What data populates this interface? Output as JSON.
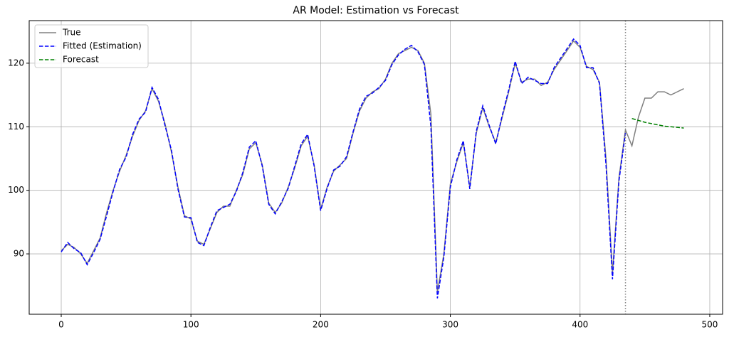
{
  "chart_data": {
    "type": "line",
    "title": "AR Model: Estimation vs Forecast",
    "x": [
      0,
      5,
      10,
      15,
      20,
      25,
      30,
      35,
      40,
      45,
      50,
      55,
      60,
      65,
      70,
      75,
      80,
      85,
      90,
      95,
      100,
      105,
      110,
      115,
      120,
      125,
      130,
      135,
      140,
      145,
      150,
      155,
      160,
      165,
      170,
      175,
      180,
      185,
      190,
      195,
      200,
      205,
      210,
      215,
      220,
      225,
      230,
      235,
      240,
      245,
      250,
      255,
      260,
      265,
      270,
      275,
      280,
      285,
      290,
      295,
      300,
      305,
      310,
      315,
      320,
      325,
      330,
      335,
      340,
      345,
      350,
      355,
      360,
      365,
      370,
      375,
      380,
      385,
      390,
      395,
      400,
      405,
      410,
      415,
      420,
      425,
      430,
      435,
      440,
      445,
      450,
      455,
      460,
      465,
      470,
      475,
      480
    ],
    "series": [
      {
        "name": "True",
        "color": "#808080",
        "linestyle": "solid",
        "values": [
          90.5,
          91.5,
          91.0,
          90.0,
          88.5,
          90.5,
          92.5,
          96.5,
          100.0,
          103.0,
          105.5,
          108.5,
          111.0,
          112.5,
          116.0,
          114.0,
          110.5,
          106.0,
          100.5,
          96.0,
          95.5,
          92.0,
          91.5,
          94.0,
          96.5,
          97.5,
          97.5,
          100.0,
          102.5,
          106.5,
          107.5,
          104.0,
          98.0,
          96.5,
          98.0,
          100.5,
          103.5,
          107.0,
          108.5,
          104.0,
          97.0,
          100.5,
          103.0,
          104.0,
          105.0,
          109.0,
          112.5,
          114.5,
          115.5,
          116.0,
          117.5,
          120.0,
          121.5,
          122.0,
          122.5,
          122.0,
          120.0,
          112.0,
          84.0,
          90.0,
          101.0,
          104.5,
          107.5,
          100.5,
          109.0,
          113.0,
          110.0,
          107.5,
          111.5,
          115.5,
          120.0,
          117.0,
          117.5,
          117.5,
          116.5,
          117.0,
          119.0,
          120.5,
          122.0,
          123.5,
          122.5,
          119.5,
          119.0,
          117.0,
          105.0,
          87.0,
          102.0,
          109.5,
          107.0,
          111.5,
          114.5,
          114.5,
          115.5,
          115.5,
          115.0,
          115.5,
          116.0
        ]
      },
      {
        "name": "Fitted (Estimation)",
        "color": "#0000ff",
        "linestyle": "dashed",
        "values": [
          90.3,
          91.8,
          90.8,
          90.2,
          88.3,
          90.2,
          92.3,
          96.0,
          99.8,
          103.3,
          105.2,
          108.8,
          111.2,
          112.3,
          116.2,
          114.3,
          110.2,
          106.3,
          100.2,
          95.8,
          95.7,
          91.8,
          91.3,
          94.2,
          96.8,
          97.3,
          97.8,
          99.8,
          102.8,
          106.8,
          107.8,
          103.8,
          97.8,
          96.3,
          98.2,
          100.3,
          103.8,
          107.3,
          108.8,
          103.8,
          96.8,
          100.3,
          103.2,
          103.8,
          105.3,
          109.2,
          112.8,
          114.8,
          115.3,
          116.2,
          117.3,
          119.8,
          121.3,
          122.2,
          122.8,
          121.8,
          119.8,
          110.0,
          83.0,
          89.5,
          100.5,
          104.8,
          107.8,
          100.2,
          109.3,
          113.3,
          110.2,
          107.3,
          111.8,
          115.8,
          120.3,
          116.8,
          117.8,
          117.3,
          116.8,
          116.8,
          119.3,
          120.8,
          122.3,
          123.8,
          122.8,
          119.3,
          119.3,
          116.8,
          104.0,
          86.0,
          101.5,
          109.0,
          null,
          null,
          null,
          null,
          null,
          null,
          null,
          null,
          null
        ]
      },
      {
        "name": "Forecast",
        "color": "#008000",
        "linestyle": "dashed",
        "values": [
          null,
          null,
          null,
          null,
          null,
          null,
          null,
          null,
          null,
          null,
          null,
          null,
          null,
          null,
          null,
          null,
          null,
          null,
          null,
          null,
          null,
          null,
          null,
          null,
          null,
          null,
          null,
          null,
          null,
          null,
          null,
          null,
          null,
          null,
          null,
          null,
          null,
          null,
          null,
          null,
          null,
          null,
          null,
          null,
          null,
          null,
          null,
          null,
          null,
          null,
          null,
          null,
          null,
          null,
          null,
          null,
          null,
          null,
          null,
          null,
          null,
          null,
          null,
          null,
          null,
          null,
          null,
          null,
          null,
          null,
          null,
          null,
          null,
          null,
          null,
          null,
          null,
          null,
          null,
          null,
          null,
          null,
          null,
          null,
          null,
          null,
          null,
          null,
          111.3,
          111.0,
          110.7,
          110.5,
          110.3,
          110.1,
          110.0,
          109.9,
          109.8
        ]
      }
    ],
    "xlim": [
      -24.7,
      509.9
    ],
    "ylim": [
      80.5,
      126.7
    ],
    "xticks": [
      0,
      100,
      200,
      300,
      400,
      500
    ],
    "yticks": [
      90,
      100,
      110,
      120
    ],
    "vline": 435,
    "vline_color": "#808080",
    "grid": true,
    "legend": "upper left"
  }
}
